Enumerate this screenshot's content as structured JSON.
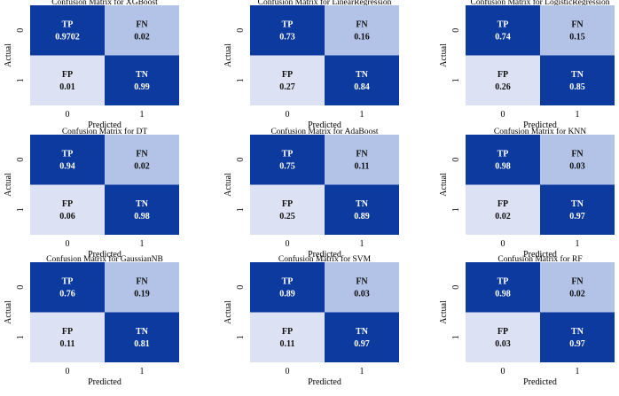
{
  "chart_data": [
    {
      "type": "heatmap",
      "title": "Confusion Matrix for XGBoost",
      "xlabel": "Predicted",
      "ylabel": "Actual",
      "x_ticks": [
        "0",
        "1"
      ],
      "y_ticks": [
        "0",
        "1"
      ],
      "cells": [
        {
          "label": "TP",
          "value": "0.9702"
        },
        {
          "label": "FN",
          "value": "0.02"
        },
        {
          "label": "FP",
          "value": "0.01"
        },
        {
          "label": "TN",
          "value": "0.99"
        }
      ]
    },
    {
      "type": "heatmap",
      "title": "Confusion Matrix for LinearRegression",
      "xlabel": "Predicted",
      "ylabel": "Actual",
      "x_ticks": [
        "0",
        "1"
      ],
      "y_ticks": [
        "0",
        "1"
      ],
      "cells": [
        {
          "label": "TP",
          "value": "0.73"
        },
        {
          "label": "FN",
          "value": "0.16"
        },
        {
          "label": "FP",
          "value": "0.27"
        },
        {
          "label": "TN",
          "value": "0.84"
        }
      ]
    },
    {
      "type": "heatmap",
      "title": "Confusion Matrix for LogisticRegression",
      "xlabel": "Predicted",
      "ylabel": "Actual",
      "x_ticks": [
        "0",
        "1"
      ],
      "y_ticks": [
        "0",
        "1"
      ],
      "cells": [
        {
          "label": "TP",
          "value": "0.74"
        },
        {
          "label": "FN",
          "value": "0.15"
        },
        {
          "label": "FP",
          "value": "0.26"
        },
        {
          "label": "TN",
          "value": "0.85"
        }
      ]
    },
    {
      "type": "heatmap",
      "title": "Confusion Matrix for DT",
      "xlabel": "Predicted",
      "ylabel": "Actual",
      "x_ticks": [
        "0",
        "1"
      ],
      "y_ticks": [
        "0",
        "1"
      ],
      "cells": [
        {
          "label": "TP",
          "value": "0.94"
        },
        {
          "label": "FN",
          "value": "0.02"
        },
        {
          "label": "FP",
          "value": "0.06"
        },
        {
          "label": "TN",
          "value": "0.98"
        }
      ]
    },
    {
      "type": "heatmap",
      "title": "Confusion Matrix for AdaBoost",
      "xlabel": "Predicted",
      "ylabel": "Actual",
      "x_ticks": [
        "0",
        "1"
      ],
      "y_ticks": [
        "0",
        "1"
      ],
      "cells": [
        {
          "label": "TP",
          "value": "0.75"
        },
        {
          "label": "FN",
          "value": "0.11"
        },
        {
          "label": "FP",
          "value": "0.25"
        },
        {
          "label": "TN",
          "value": "0.89"
        }
      ]
    },
    {
      "type": "heatmap",
      "title": "Confusion Matrix for KNN",
      "xlabel": "Predicted",
      "ylabel": "Actual",
      "x_ticks": [
        "0",
        "1"
      ],
      "y_ticks": [
        "0",
        "1"
      ],
      "cells": [
        {
          "label": "TP",
          "value": "0.98"
        },
        {
          "label": "FN",
          "value": "0.03"
        },
        {
          "label": "FP",
          "value": "0.02"
        },
        {
          "label": "TN",
          "value": "0.97"
        }
      ]
    },
    {
      "type": "heatmap",
      "title": "Confusion Matrix for GaussianNB",
      "xlabel": "Predicted",
      "ylabel": "Actual",
      "x_ticks": [
        "0",
        "1"
      ],
      "y_ticks": [
        "0",
        "1"
      ],
      "cells": [
        {
          "label": "TP",
          "value": "0.76"
        },
        {
          "label": "FN",
          "value": "0.19"
        },
        {
          "label": "FP",
          "value": "0.11"
        },
        {
          "label": "TN",
          "value": "0.81"
        }
      ]
    },
    {
      "type": "heatmap",
      "title": "Confusion Matrix for SVM",
      "xlabel": "Predicted",
      "ylabel": "Actual",
      "x_ticks": [
        "0",
        "1"
      ],
      "y_ticks": [
        "0",
        "1"
      ],
      "cells": [
        {
          "label": "TP",
          "value": "0.89"
        },
        {
          "label": "FN",
          "value": "0.03"
        },
        {
          "label": "FP",
          "value": "0.11"
        },
        {
          "label": "TN",
          "value": "0.97"
        }
      ]
    },
    {
      "type": "heatmap",
      "title": "Confusion Matrix for RF",
      "xlabel": "Predicted",
      "ylabel": "Actual",
      "x_ticks": [
        "0",
        "1"
      ],
      "y_ticks": [
        "0",
        "1"
      ],
      "cells": [
        {
          "label": "TP",
          "value": "0.98"
        },
        {
          "label": "FN",
          "value": "0.02"
        },
        {
          "label": "FP",
          "value": "0.03"
        },
        {
          "label": "TN",
          "value": "0.97"
        }
      ]
    }
  ],
  "colors": {
    "dark": "#0c3a9e",
    "light": "#b3c3e7",
    "lighter": "#dce2f3"
  }
}
